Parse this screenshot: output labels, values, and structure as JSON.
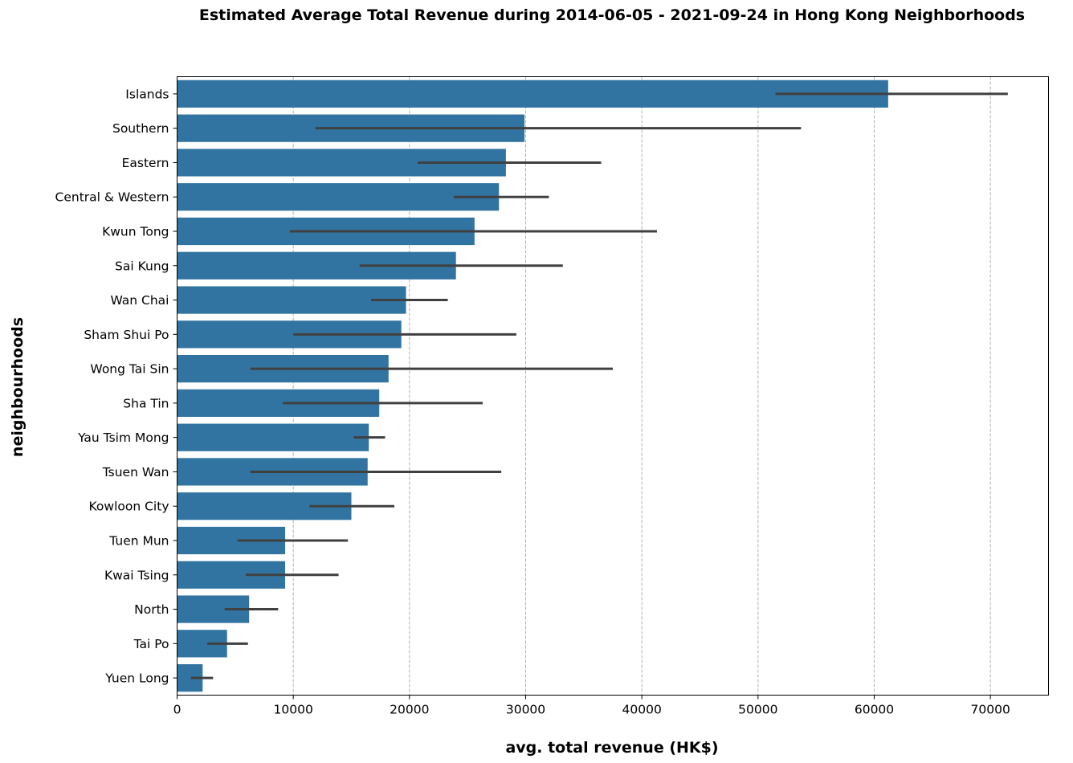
{
  "chart_data": {
    "type": "bar",
    "orientation": "horizontal",
    "title": "Estimated Average Total Revenue during 2014-06-05 - 2021-09-24 in Hong Kong Neighborhoods",
    "xlabel": "avg. total revenue (HK$)",
    "ylabel": "neighbourhoods",
    "xlim": [
      0,
      75000
    ],
    "xticks": [
      0,
      10000,
      20000,
      30000,
      40000,
      50000,
      60000,
      70000
    ],
    "grid": "x-dashed",
    "bar_color": "#3274a1",
    "errorbar_color": "#404040",
    "categories": [
      "Islands",
      "Southern",
      "Eastern",
      "Central & Western",
      "Kwun Tong",
      "Sai Kung",
      "Wan Chai",
      "Sham Shui Po",
      "Wong Tai Sin",
      "Sha Tin",
      "Yau Tsim Mong",
      "Tsuen Wan",
      "Kowloon City",
      "Tuen Mun",
      "Kwai Tsing",
      "North",
      "Tai Po",
      "Yuen Long"
    ],
    "values": [
      61200,
      29900,
      28300,
      27700,
      25600,
      24000,
      19700,
      19300,
      18200,
      17400,
      16500,
      16400,
      15000,
      9300,
      9300,
      6200,
      4300,
      2200
    ],
    "ci_low": [
      51500,
      11900,
      20700,
      23800,
      9700,
      15700,
      16700,
      10000,
      6300,
      9100,
      15200,
      6300,
      11400,
      5200,
      5900,
      4100,
      2600,
      1200
    ],
    "ci_high": [
      71500,
      53700,
      36500,
      32000,
      41300,
      33200,
      23300,
      29200,
      37500,
      26300,
      17900,
      27900,
      18700,
      14700,
      13900,
      8700,
      6100,
      3100
    ]
  }
}
